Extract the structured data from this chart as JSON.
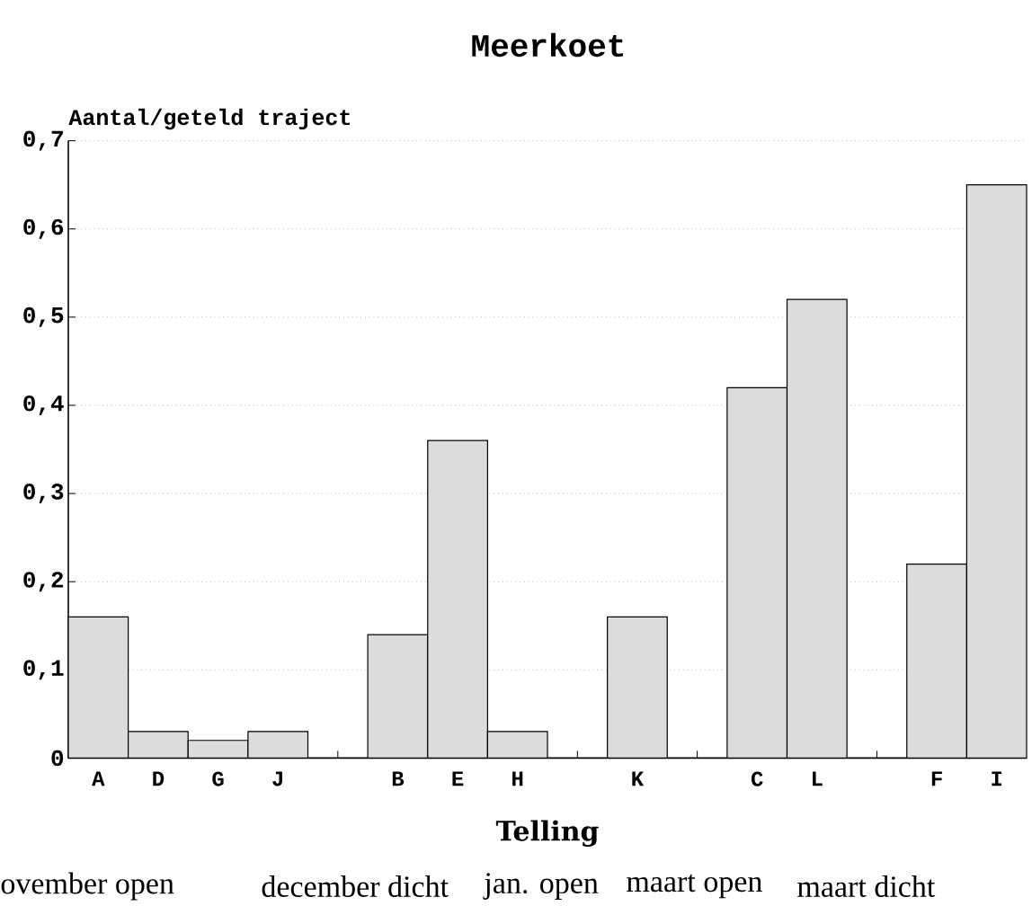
{
  "chart_data": {
    "type": "bar",
    "title": "Meerkoet",
    "xlabel": "Telling",
    "ylabel": "Aantal/geteld traject",
    "categories": [
      "A",
      "D",
      "G",
      "J",
      null,
      "B",
      "E",
      "H",
      null,
      "K",
      null,
      "C",
      "L",
      null,
      "F",
      "I"
    ],
    "values": [
      0.16,
      0.03,
      0.02,
      0.03,
      null,
      0.14,
      0.36,
      0.03,
      null,
      0.16,
      null,
      0.42,
      0.52,
      null,
      0.22,
      0.65
    ],
    "color": "#dcdcdc",
    "ylim": [
      0,
      0.7
    ],
    "yticks": [
      0,
      {
        "value": 0.1,
        "label": "0,1"
      },
      {
        "value": 0.2,
        "label": "0,2"
      },
      {
        "value": 0.3,
        "label": "0,3"
      },
      {
        "value": 0.4,
        "label": "0,4"
      },
      {
        "value": 0.5,
        "label": "0,5"
      },
      {
        "value": 0.6,
        "label": "0,6"
      },
      {
        "value": 0.7,
        "label": "0,7"
      }
    ],
    "grid": "y",
    "annotations": [
      "ovember open",
      "december dicht",
      "jan. open",
      "maart open",
      "maart dicht"
    ]
  }
}
